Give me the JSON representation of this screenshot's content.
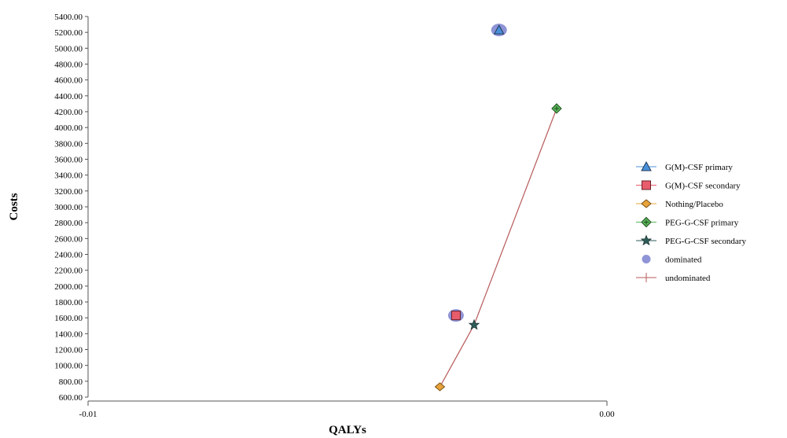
{
  "chart_data": {
    "type": "scatter",
    "xlabel": "QALYs",
    "ylabel": "Costs",
    "xlim": [
      -0.01,
      0.0
    ],
    "ylim": [
      600,
      5400
    ],
    "x_tick_labels": [
      {
        "value": -0.01,
        "label": "-0.01"
      },
      {
        "value": 0.0,
        "label": "0.00"
      }
    ],
    "y_ticks": [
      600,
      800,
      1000,
      1200,
      1400,
      1600,
      1800,
      2000,
      2200,
      2400,
      2600,
      2800,
      3000,
      3200,
      3400,
      3600,
      3800,
      4000,
      4200,
      4400,
      4600,
      4800,
      5000,
      5200,
      5400
    ],
    "y_tick_labels": [
      "600.00",
      "800.00",
      "1000.00",
      "1200.00",
      "1400.00",
      "1600.00",
      "1800.00",
      "2000.00",
      "2200.00",
      "2400.00",
      "2600.00",
      "2800.00",
      "3000.00",
      "3200.00",
      "3400.00",
      "3600.00",
      "3800.00",
      "4000.00",
      "4200.00",
      "4400.00",
      "4600.00",
      "4800.00",
      "5000.00",
      "5200.00",
      "5400.00"
    ],
    "legend_position": "right",
    "series": [
      {
        "name": "G(M)-CSF primary",
        "marker": "triangle",
        "color": "#4a90d9",
        "x": -0.00208,
        "y": 5230
      },
      {
        "name": "G(M)-CSF secondary",
        "marker": "square",
        "color": "#e85c6c",
        "x": -0.00291,
        "y": 1630
      },
      {
        "name": "Nothing/Placebo",
        "marker": "diamond",
        "color": "#e8a33a",
        "x": -0.00322,
        "y": 730
      },
      {
        "name": "PEG-G-CSF primary",
        "marker": "crossed-diamond",
        "color": "#5cb85c",
        "x": -0.00097,
        "y": 4240
      },
      {
        "name": "PEG-G-CSF secondary",
        "marker": "star",
        "color": "#2f5e5a",
        "x": -0.00256,
        "y": 1510
      }
    ],
    "dominated": {
      "name": "dominated",
      "color": "#8f94d6",
      "points": [
        "G(M)-CSF primary",
        "G(M)-CSF secondary"
      ]
    },
    "undominated": {
      "name": "undominated",
      "color": "#b85a5a",
      "path": [
        "Nothing/Placebo",
        "PEG-G-CSF secondary",
        "PEG-G-CSF primary"
      ]
    }
  }
}
